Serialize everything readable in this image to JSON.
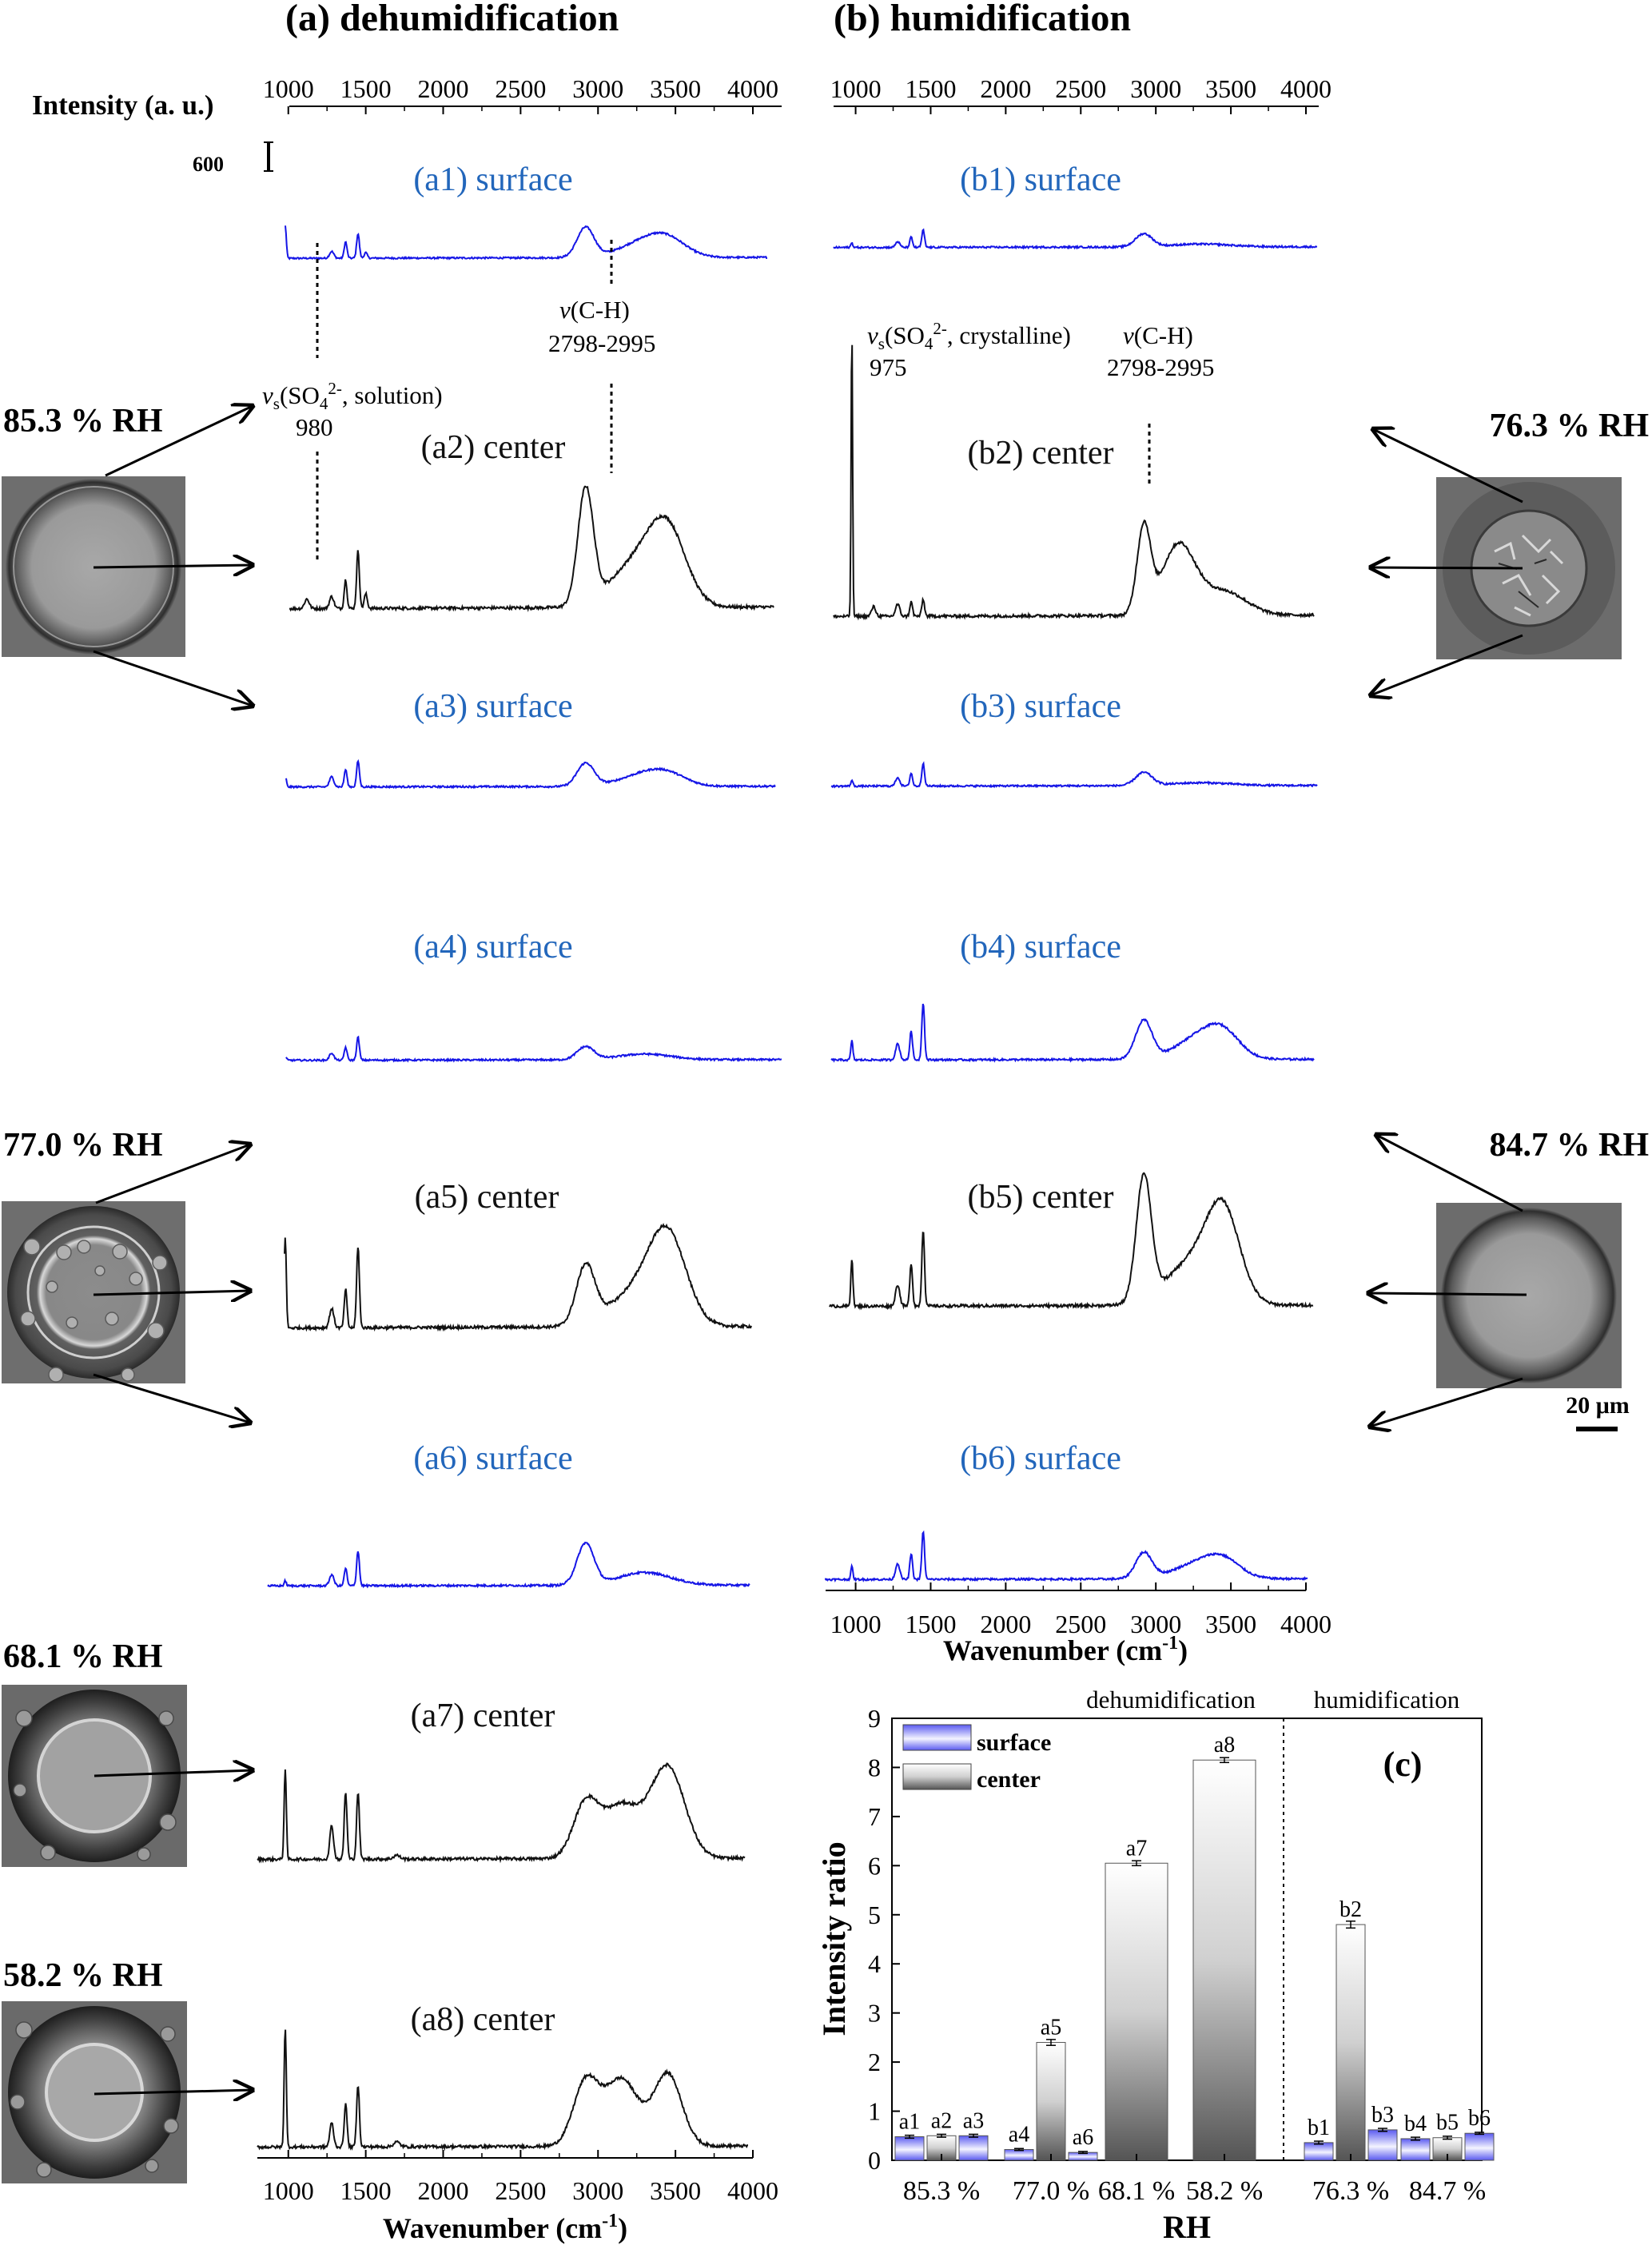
{
  "panels": {
    "a_title": "(a) dehumidification",
    "b_title": "(b) humidification",
    "intensity_label": "Intensity (a. u.)",
    "scale_bar_value": "600",
    "x_axis_label": "Wavenumber (cm",
    "x_axis_label_sup": "-1",
    "x_axis_label_end": ")",
    "micro_scale": "20 μm"
  },
  "rh_labels": {
    "a_top": "85.3 % RH",
    "a_mid": "77.0 % RH",
    "a_7": "68.1 % RH",
    "a_8": "58.2 % RH",
    "b_top": "76.3 % RH",
    "b_mid": "84.7 % RH"
  },
  "annotations": {
    "ch_v": "v",
    "ch_rest": "(C-H)",
    "ch_range": "2798-2995",
    "so4_v": "v",
    "so4_s": "s",
    "so4_a": "(SO",
    "so4_4": "4",
    "so4_2": "2-",
    "so4_sol": ", solution)",
    "so4_cry": ", crystalline)",
    "so4_sol_wn": "980",
    "so4_cry_wn": "975"
  },
  "chart_data": [
    {
      "type": "line",
      "title": "(a) dehumidification",
      "x_ticks": [
        1000,
        1500,
        2000,
        2500,
        3000,
        3500,
        4000
      ],
      "xlim": [
        800,
        4000
      ],
      "xlabel": "Wavenumber (cm-1)",
      "ylabel": "Intensity (a. u.)",
      "scale_bar": 600,
      "series": [
        {
          "name": "(a1) surface",
          "label": "(a1) surface",
          "color": "#1515e6",
          "baseline": 0.15,
          "peaks": [
            [
              980,
              1.2,
              7
            ],
            [
              1280,
              0.25,
              14
            ],
            [
              1370,
              0.6,
              9
            ],
            [
              1450,
              0.9,
              9
            ],
            [
              1500,
              0.2,
              10
            ]
          ],
          "broad": [
            [
              2920,
              1.1,
              55
            ],
            [
              3300,
              0.55,
              160
            ],
            [
              3450,
              0.5,
              120
            ]
          ]
        },
        {
          "name": "(a2) center",
          "label": "(a2) center",
          "color": "#111111",
          "baseline": 0.15,
          "peaks": [
            [
              980,
              1.5,
              7
            ],
            [
              1120,
              0.2,
              15
            ],
            [
              1280,
              0.25,
              14
            ],
            [
              1370,
              0.6,
              9
            ],
            [
              1450,
              1.2,
              9
            ],
            [
              1500,
              0.3,
              10
            ]
          ],
          "broad": [
            [
              2920,
              2.4,
              50
            ],
            [
              3250,
              0.9,
              170
            ],
            [
              3450,
              1.4,
              120
            ]
          ]
        },
        {
          "name": "(a3) surface",
          "label": "(a3) surface",
          "color": "#1515e6",
          "baseline": 0.1,
          "peaks": [
            [
              980,
              0.4,
              7
            ],
            [
              1280,
              0.35,
              14
            ],
            [
              1370,
              0.6,
              9
            ],
            [
              1450,
              0.9,
              9
            ]
          ],
          "broad": [
            [
              2920,
              0.8,
              55
            ],
            [
              3300,
              0.4,
              160
            ],
            [
              3450,
              0.3,
              120
            ]
          ]
        },
        {
          "name": "(a4) surface",
          "label": "(a4) surface",
          "color": "#1515e6",
          "baseline": 0.1,
          "peaks": [
            [
              980,
              0.15,
              7
            ],
            [
              1280,
              0.25,
              14
            ],
            [
              1370,
              0.45,
              9
            ],
            [
              1450,
              0.8,
              9
            ]
          ],
          "broad": [
            [
              2920,
              0.45,
              55
            ],
            [
              3300,
              0.2,
              170
            ]
          ]
        },
        {
          "name": "(a5) center",
          "label": "(a5) center",
          "color": "#111111",
          "baseline": 0.15,
          "peaks": [
            [
              980,
              1.9,
              7
            ],
            [
              1280,
              0.4,
              14
            ],
            [
              1370,
              0.8,
              9
            ],
            [
              1450,
              1.7,
              9
            ]
          ],
          "broad": [
            [
              2920,
              1.2,
              60
            ],
            [
              3250,
              0.7,
              180
            ],
            [
              3450,
              1.7,
              120
            ]
          ]
        },
        {
          "name": "(a6) surface",
          "label": "(a6) surface",
          "color": "#1515e6",
          "baseline": 0.1,
          "peaks": [
            [
              980,
              0.15,
              7
            ],
            [
              1280,
              0.35,
              14
            ],
            [
              1370,
              0.55,
              9
            ],
            [
              1450,
              1.1,
              9
            ]
          ],
          "broad": [
            [
              2920,
              1.3,
              55
            ],
            [
              3300,
              0.4,
              170
            ]
          ]
        },
        {
          "name": "(a7) center",
          "label": "(a7) center",
          "color": "#111111",
          "baseline": 0.1,
          "peaks": [
            [
              980,
              1.9,
              7
            ],
            [
              1280,
              0.7,
              12
            ],
            [
              1370,
              1.4,
              9
            ],
            [
              1450,
              1.4,
              9
            ],
            [
              1700,
              0.08,
              20
            ]
          ],
          "broad": [
            [
              2920,
              1.1,
              80
            ],
            [
              3150,
              1.1,
              120
            ],
            [
              3450,
              1.9,
              110
            ]
          ]
        },
        {
          "name": "(a8) center",
          "label": "(a8) center",
          "color": "#111111",
          "baseline": 0.1,
          "peaks": [
            [
              980,
              2.5,
              7
            ],
            [
              1280,
              0.5,
              12
            ],
            [
              1370,
              0.9,
              9
            ],
            [
              1450,
              1.3,
              9
            ],
            [
              1700,
              0.1,
              20
            ]
          ],
          "broad": [
            [
              2920,
              1.3,
              80
            ],
            [
              3150,
              1.4,
              110
            ],
            [
              3450,
              1.5,
              90
            ]
          ]
        }
      ]
    },
    {
      "type": "line",
      "title": "(b) humidification",
      "x_ticks": [
        1000,
        1500,
        2000,
        2500,
        3000,
        3500,
        4000
      ],
      "xlim": [
        800,
        4000
      ],
      "xlabel": "Wavenumber (cm-1)",
      "series": [
        {
          "name": "(b1) surface",
          "label": "(b1) surface",
          "color": "#1515e6",
          "baseline": 0.1,
          "peaks": [
            [
              975,
              0.15,
              7
            ],
            [
              1280,
              0.2,
              14
            ],
            [
              1370,
              0.35,
              9
            ],
            [
              1450,
              0.6,
              9
            ]
          ],
          "broad": [
            [
              2920,
              0.45,
              55
            ],
            [
              3300,
              0.1,
              200
            ]
          ]
        },
        {
          "name": "(b2) center",
          "label": "(b2) center",
          "color": "#111111",
          "baseline": 0.12,
          "peaks": [
            [
              975,
              6.0,
              5
            ],
            [
              1120,
              0.2,
              14
            ],
            [
              1280,
              0.25,
              14
            ],
            [
              1370,
              0.3,
              9
            ],
            [
              1450,
              0.35,
              9
            ]
          ],
          "broad": [
            [
              2920,
              1.8,
              45
            ],
            [
              3150,
              1.45,
              110
            ],
            [
              3450,
              0.5,
              150
            ]
          ]
        },
        {
          "name": "(b3) surface",
          "label": "(b3) surface",
          "color": "#1515e6",
          "baseline": 0.1,
          "peaks": [
            [
              975,
              0.2,
              7
            ],
            [
              1280,
              0.3,
              14
            ],
            [
              1370,
              0.45,
              9
            ],
            [
              1450,
              0.8,
              9
            ]
          ],
          "broad": [
            [
              2920,
              0.45,
              55
            ],
            [
              3300,
              0.1,
              200
            ]
          ]
        },
        {
          "name": "(b4) surface",
          "label": "(b4) surface",
          "color": "#1515e6",
          "baseline": 0.1,
          "peaks": [
            [
              975,
              0.6,
              7
            ],
            [
              1280,
              0.5,
              14
            ],
            [
              1370,
              0.9,
              9
            ],
            [
              1450,
              1.8,
              9
            ]
          ],
          "broad": [
            [
              2920,
              1.2,
              55
            ],
            [
              3300,
              0.7,
              160
            ],
            [
              3450,
              0.6,
              110
            ]
          ]
        },
        {
          "name": "(b5) center",
          "label": "(b5) center",
          "color": "#111111",
          "baseline": 0.1,
          "peaks": [
            [
              975,
              1.0,
              7
            ],
            [
              1280,
              0.45,
              14
            ],
            [
              1370,
              0.9,
              9
            ],
            [
              1450,
              1.6,
              9
            ]
          ],
          "broad": [
            [
              2920,
              2.6,
              50
            ],
            [
              3250,
              0.9,
              180
            ],
            [
              3450,
              1.7,
              110
            ]
          ]
        },
        {
          "name": "(b6) surface",
          "label": "(b6) surface",
          "color": "#1515e6",
          "baseline": 0.1,
          "peaks": [
            [
              975,
              0.4,
              7
            ],
            [
              1280,
              0.5,
              14
            ],
            [
              1370,
              0.8,
              9
            ],
            [
              1450,
              1.5,
              9
            ]
          ],
          "broad": [
            [
              2920,
              0.8,
              55
            ],
            [
              3300,
              0.5,
              170
            ],
            [
              3450,
              0.4,
              110
            ]
          ]
        }
      ]
    },
    {
      "type": "bar",
      "title": "(c)",
      "xlabel": "RH",
      "ylabel": "Intensity ratio",
      "ylim": [
        0,
        9
      ],
      "y_ticks": [
        0,
        1,
        2,
        3,
        4,
        5,
        6,
        7,
        8,
        9
      ],
      "section_labels": [
        "dehumidification",
        "humidification"
      ],
      "legend": [
        {
          "name": "surface",
          "color": "#6666ee"
        },
        {
          "name": "center",
          "color": "#555555"
        }
      ],
      "groups": [
        {
          "rh": "85.3 %",
          "bars": [
            {
              "label": "a1",
              "kind": "surface",
              "value": 0.48,
              "err": 0.03
            },
            {
              "label": "a2",
              "kind": "center",
              "value": 0.5,
              "err": 0.03
            },
            {
              "label": "a3",
              "kind": "surface",
              "value": 0.5,
              "err": 0.03
            }
          ]
        },
        {
          "rh": "77.0 %",
          "bars": [
            {
              "label": "a4",
              "kind": "surface",
              "value": 0.22,
              "err": 0.02
            },
            {
              "label": "a5",
              "kind": "center",
              "value": 2.4,
              "err": 0.06
            },
            {
              "label": "a6",
              "kind": "surface",
              "value": 0.16,
              "err": 0.02
            }
          ]
        },
        {
          "rh": "68.1 %",
          "bars": [
            {
              "label": "a7",
              "kind": "center",
              "value": 6.05,
              "err": 0.05
            }
          ]
        },
        {
          "rh": "58.2 %",
          "bars": [
            {
              "label": "a8",
              "kind": "center",
              "value": 8.15,
              "err": 0.05
            }
          ]
        },
        {
          "rh": "76.3 %",
          "bars": [
            {
              "label": "b1",
              "kind": "surface",
              "value": 0.36,
              "err": 0.03
            },
            {
              "label": "b2",
              "kind": "center",
              "value": 4.8,
              "err": 0.07
            },
            {
              "label": "b3",
              "kind": "surface",
              "value": 0.62,
              "err": 0.03
            }
          ]
        },
        {
          "rh": "84.7 %",
          "bars": [
            {
              "label": "b4",
              "kind": "surface",
              "value": 0.44,
              "err": 0.03
            },
            {
              "label": "b5",
              "kind": "center",
              "value": 0.46,
              "err": 0.03
            },
            {
              "label": "b6",
              "kind": "surface",
              "value": 0.55,
              "err": 0.02
            }
          ]
        }
      ]
    }
  ]
}
